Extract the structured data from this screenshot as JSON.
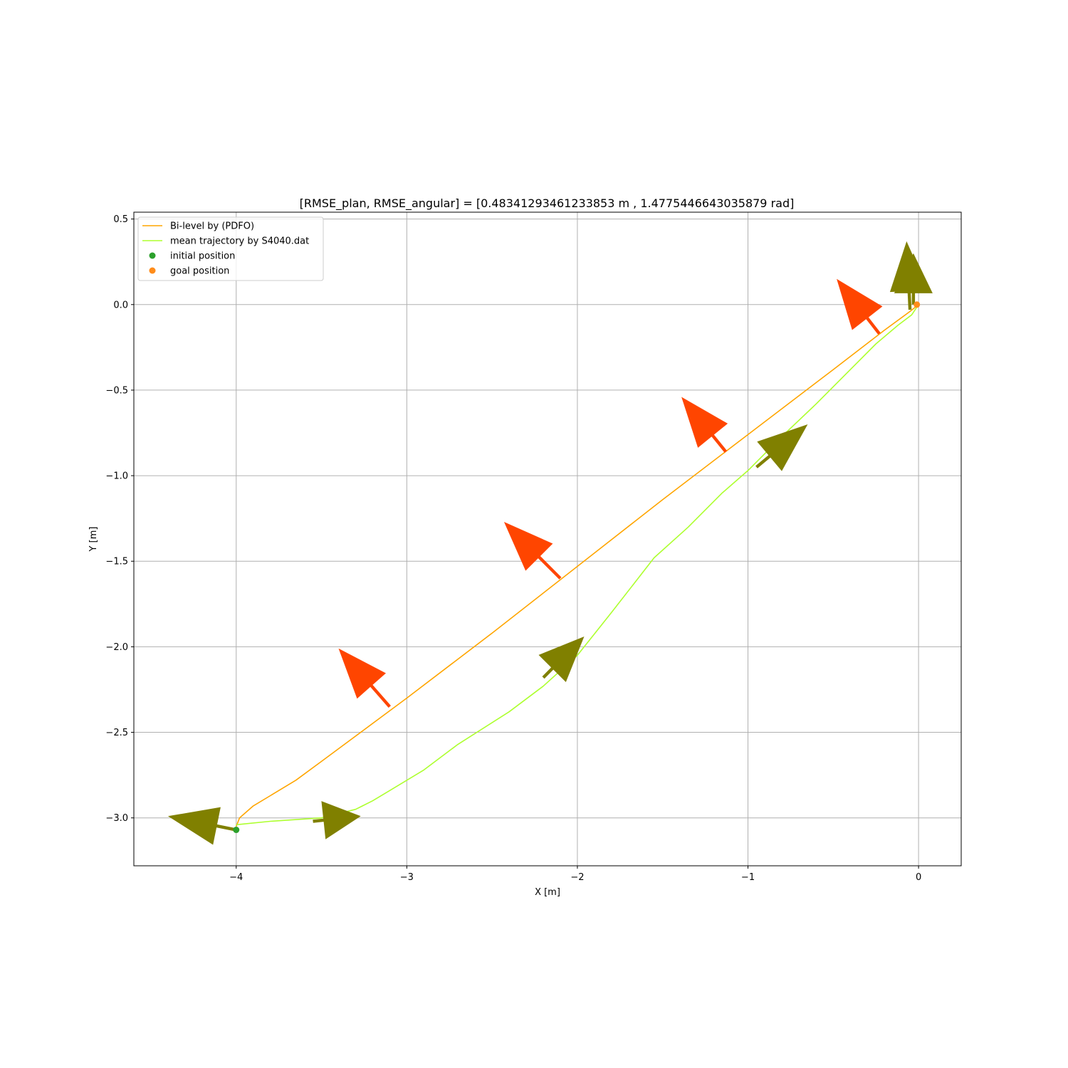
{
  "chart_data": {
    "type": "line",
    "title": "[RMSE_plan, RMSE_angular] = [0.48341293461233853 m , 1.4775446643035879 rad]",
    "xlabel": "X [m]",
    "ylabel": "Y [m]",
    "xlim": [
      -4.6,
      0.25
    ],
    "ylim": [
      -3.28,
      0.54
    ],
    "xticks": [
      -4,
      -3,
      -2,
      -1,
      0
    ],
    "yticks": [
      0.5,
      0.0,
      -0.5,
      -1.0,
      -1.5,
      -2.0,
      -2.5,
      -3.0
    ],
    "xtick_labels": [
      "−4",
      "−3",
      "−2",
      "−1",
      "0"
    ],
    "ytick_labels": [
      "0.5",
      "0.0",
      "−0.5",
      "−1.0",
      "−1.5",
      "−2.0",
      "−2.5",
      "−3.0"
    ],
    "grid": true,
    "legend_position": "top-left",
    "series": [
      {
        "name": "Bi-level by (PDFO)",
        "color": "#ffa500",
        "x": [
          -4.0,
          -3.98,
          -3.9,
          -3.8,
          -3.65,
          -3.5,
          -3.0,
          -2.5,
          -2.0,
          -1.5,
          -1.0,
          -0.5,
          -0.2,
          -0.05,
          0.0
        ],
        "y": [
          -3.05,
          -3.0,
          -2.93,
          -2.87,
          -2.78,
          -2.67,
          -2.3,
          -1.92,
          -1.53,
          -1.14,
          -0.76,
          -0.38,
          -0.15,
          -0.04,
          0.0
        ]
      },
      {
        "name": "mean trajectory by S4040.dat",
        "color": "#adff2f",
        "x": [
          -4.0,
          -3.8,
          -3.5,
          -3.3,
          -3.2,
          -3.1,
          -2.9,
          -2.7,
          -2.4,
          -2.2,
          -2.0,
          -1.8,
          -1.55,
          -1.35,
          -1.15,
          -1.0,
          -0.8,
          -0.6,
          -0.4,
          -0.25,
          -0.12,
          -0.04,
          0.0
        ],
        "y": [
          -3.04,
          -3.02,
          -3.0,
          -2.95,
          -2.9,
          -2.84,
          -2.72,
          -2.57,
          -2.38,
          -2.23,
          -2.05,
          -1.8,
          -1.48,
          -1.3,
          -1.1,
          -0.97,
          -0.77,
          -0.58,
          -0.38,
          -0.23,
          -0.12,
          -0.06,
          0.0
        ]
      }
    ],
    "points": [
      {
        "name": "initial position",
        "x": -4.0,
        "y": -3.07,
        "color": "#2ca02c"
      },
      {
        "name": "goal position",
        "x": -0.01,
        "y": 0.0,
        "color": "#ff8c1a"
      }
    ],
    "arrows": [
      {
        "group": "planned",
        "color": "#ff4500",
        "x": -3.1,
        "y": -2.35,
        "dx": -0.3,
        "dy": 0.34
      },
      {
        "group": "planned",
        "color": "#ff4500",
        "x": -2.1,
        "y": -1.6,
        "dx": -0.33,
        "dy": 0.33
      },
      {
        "group": "planned",
        "color": "#ff4500",
        "x": -1.13,
        "y": -0.86,
        "dx": -0.26,
        "dy": 0.32
      },
      {
        "group": "planned",
        "color": "#ff4500",
        "x": -0.23,
        "y": -0.17,
        "dx": -0.25,
        "dy": 0.32
      },
      {
        "group": "measured",
        "color": "#808000",
        "x": -4.0,
        "y": -3.07,
        "dx": -0.4,
        "dy": 0.08
      },
      {
        "group": "measured",
        "color": "#808000",
        "x": -3.55,
        "y": -3.02,
        "dx": 0.28,
        "dy": 0.03
      },
      {
        "group": "measured",
        "color": "#808000",
        "x": -2.2,
        "y": -2.18,
        "dx": 0.24,
        "dy": 0.24
      },
      {
        "group": "measured",
        "color": "#808000",
        "x": -0.95,
        "y": -0.95,
        "dx": 0.3,
        "dy": 0.25
      },
      {
        "group": "measured",
        "color": "#808000",
        "x": -0.05,
        "y": -0.03,
        "dx": -0.02,
        "dy": 0.4
      },
      {
        "group": "measured",
        "color": "#808000",
        "x": -0.03,
        "y": 0.0,
        "dx": 0.0,
        "dy": 0.3
      }
    ],
    "legend": [
      {
        "label": "Bi-level by (PDFO)",
        "kind": "line",
        "color": "#ffa500"
      },
      {
        "label": "mean trajectory by S4040.dat",
        "kind": "line",
        "color": "#adff2f"
      },
      {
        "label": "initial position",
        "kind": "marker",
        "color": "#2ca02c"
      },
      {
        "label": "goal position",
        "kind": "marker",
        "color": "#ff8c1a"
      }
    ]
  }
}
